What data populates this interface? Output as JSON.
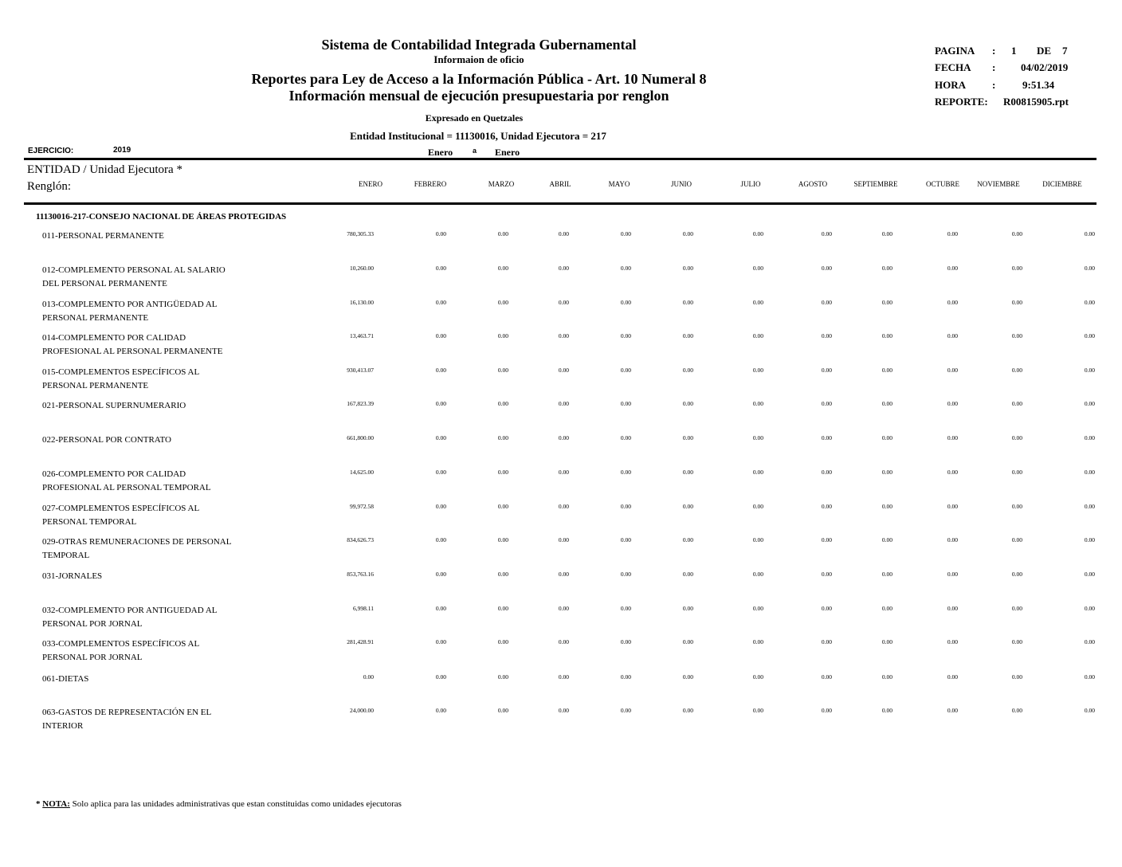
{
  "header": {
    "title": "Sistema de Contabilidad Integrada Gubernamental",
    "subtitle": "Informaion de oficio",
    "report_title": "Reportes para Ley de Acceso a la Información Pública - Art. 10 Numeral 8",
    "report_subtitle": "Información mensual de ejecución presupuestaria por renglon",
    "currency": "Expresado en Quetzales",
    "entity": "Entidad Institucional = 11130016, Unidad Ejecutora = 217"
  },
  "info": {
    "pagina_label": "PAGINA",
    "pagina_sep": ":",
    "pagina": "1",
    "de_label": "DE",
    "total_pages": "7",
    "fecha_label": "FECHA",
    "fecha_sep": ":",
    "fecha": "04/02/2019",
    "hora_label": "HORA",
    "hora_sep": ":",
    "hora": "9:51.34",
    "reporte_label": "REPORTE:",
    "reporte": "R00815905.rpt"
  },
  "period": {
    "ejercicio_label": "EJERCICIO:",
    "ejercicio": "2019",
    "from": "Enero",
    "sep": "a",
    "to": "Enero"
  },
  "table": {
    "entity_header": "ENTIDAD  / Unidad Ejecutora *",
    "renglon_header": "Renglón:",
    "months": [
      "ENERO",
      "FEBRERO",
      "MARZO",
      "ABRIL",
      "MAYO",
      "JUNIO",
      "JULIO",
      "AGOSTO",
      "SEPTIEMBRE",
      "OCTUBRE",
      "NOVIEMBRE",
      "DICIEMBRE"
    ],
    "group": "11130016-217-CONSEJO NACIONAL DE ÁREAS PROTEGIDAS",
    "rows": [
      {
        "label": [
          "011-PERSONAL PERMANENTE"
        ],
        "values": [
          "780,305.33",
          "0.00",
          "0.00",
          "0.00",
          "0.00",
          "0.00",
          "0.00",
          "0.00",
          "0.00",
          "0.00",
          "0.00",
          "0.00"
        ]
      },
      {
        "label": [
          "012-COMPLEMENTO PERSONAL AL SALARIO",
          "DEL PERSONAL PERMANENTE"
        ],
        "values": [
          "10,260.00",
          "0.00",
          "0.00",
          "0.00",
          "0.00",
          "0.00",
          "0.00",
          "0.00",
          "0.00",
          "0.00",
          "0.00",
          "0.00"
        ]
      },
      {
        "label": [
          "013-COMPLEMENTO POR ANTIGÜEDAD AL",
          "PERSONAL PERMANENTE"
        ],
        "values": [
          "16,130.00",
          "0.00",
          "0.00",
          "0.00",
          "0.00",
          "0.00",
          "0.00",
          "0.00",
          "0.00",
          "0.00",
          "0.00",
          "0.00"
        ]
      },
      {
        "label": [
          "014-COMPLEMENTO POR CALIDAD",
          "PROFESIONAL AL PERSONAL PERMANENTE"
        ],
        "values": [
          "13,463.71",
          "0.00",
          "0.00",
          "0.00",
          "0.00",
          "0.00",
          "0.00",
          "0.00",
          "0.00",
          "0.00",
          "0.00",
          "0.00"
        ]
      },
      {
        "label": [
          "015-COMPLEMENTOS ESPECÍFICOS AL",
          "PERSONAL PERMANENTE"
        ],
        "values": [
          "930,413.07",
          "0.00",
          "0.00",
          "0.00",
          "0.00",
          "0.00",
          "0.00",
          "0.00",
          "0.00",
          "0.00",
          "0.00",
          "0.00"
        ]
      },
      {
        "label": [
          "021-PERSONAL SUPERNUMERARIO"
        ],
        "values": [
          "167,823.39",
          "0.00",
          "0.00",
          "0.00",
          "0.00",
          "0.00",
          "0.00",
          "0.00",
          "0.00",
          "0.00",
          "0.00",
          "0.00"
        ]
      },
      {
        "label": [
          "022-PERSONAL POR CONTRATO"
        ],
        "values": [
          "661,800.00",
          "0.00",
          "0.00",
          "0.00",
          "0.00",
          "0.00",
          "0.00",
          "0.00",
          "0.00",
          "0.00",
          "0.00",
          "0.00"
        ]
      },
      {
        "label": [
          "026-COMPLEMENTO POR CALIDAD",
          "PROFESIONAL AL PERSONAL TEMPORAL"
        ],
        "values": [
          "14,625.00",
          "0.00",
          "0.00",
          "0.00",
          "0.00",
          "0.00",
          "0.00",
          "0.00",
          "0.00",
          "0.00",
          "0.00",
          "0.00"
        ]
      },
      {
        "label": [
          "027-COMPLEMENTOS ESPECÍFICOS AL",
          "PERSONAL TEMPORAL"
        ],
        "values": [
          "99,972.58",
          "0.00",
          "0.00",
          "0.00",
          "0.00",
          "0.00",
          "0.00",
          "0.00",
          "0.00",
          "0.00",
          "0.00",
          "0.00"
        ]
      },
      {
        "label": [
          "029-OTRAS REMUNERACIONES DE PERSONAL",
          "TEMPORAL"
        ],
        "values": [
          "834,626.73",
          "0.00",
          "0.00",
          "0.00",
          "0.00",
          "0.00",
          "0.00",
          "0.00",
          "0.00",
          "0.00",
          "0.00",
          "0.00"
        ]
      },
      {
        "label": [
          "031-JORNALES"
        ],
        "values": [
          "853,763.16",
          "0.00",
          "0.00",
          "0.00",
          "0.00",
          "0.00",
          "0.00",
          "0.00",
          "0.00",
          "0.00",
          "0.00",
          "0.00"
        ]
      },
      {
        "label": [
          "032-COMPLEMENTO POR ANTIGUEDAD AL",
          "PERSONAL POR JORNAL"
        ],
        "values": [
          "6,998.11",
          "0.00",
          "0.00",
          "0.00",
          "0.00",
          "0.00",
          "0.00",
          "0.00",
          "0.00",
          "0.00",
          "0.00",
          "0.00"
        ]
      },
      {
        "label": [
          "033-COMPLEMENTOS ESPECÍFICOS AL",
          "PERSONAL POR JORNAL"
        ],
        "values": [
          "281,428.91",
          "0.00",
          "0.00",
          "0.00",
          "0.00",
          "0.00",
          "0.00",
          "0.00",
          "0.00",
          "0.00",
          "0.00",
          "0.00"
        ]
      },
      {
        "label": [
          "061-DIETAS"
        ],
        "values": [
          "0.00",
          "0.00",
          "0.00",
          "0.00",
          "0.00",
          "0.00",
          "0.00",
          "0.00",
          "0.00",
          "0.00",
          "0.00",
          "0.00"
        ]
      },
      {
        "label": [
          "063-GASTOS DE REPRESENTACIÓN EN EL",
          "INTERIOR"
        ],
        "values": [
          "24,000.00",
          "0.00",
          "0.00",
          "0.00",
          "0.00",
          "0.00",
          "0.00",
          "0.00",
          "0.00",
          "0.00",
          "0.00",
          "0.00"
        ]
      }
    ]
  },
  "footnote": {
    "star": "*",
    "label": "NOTA:",
    "text": "Solo aplica para las unidades administrativas que estan constituidas como unidades ejecutoras"
  }
}
